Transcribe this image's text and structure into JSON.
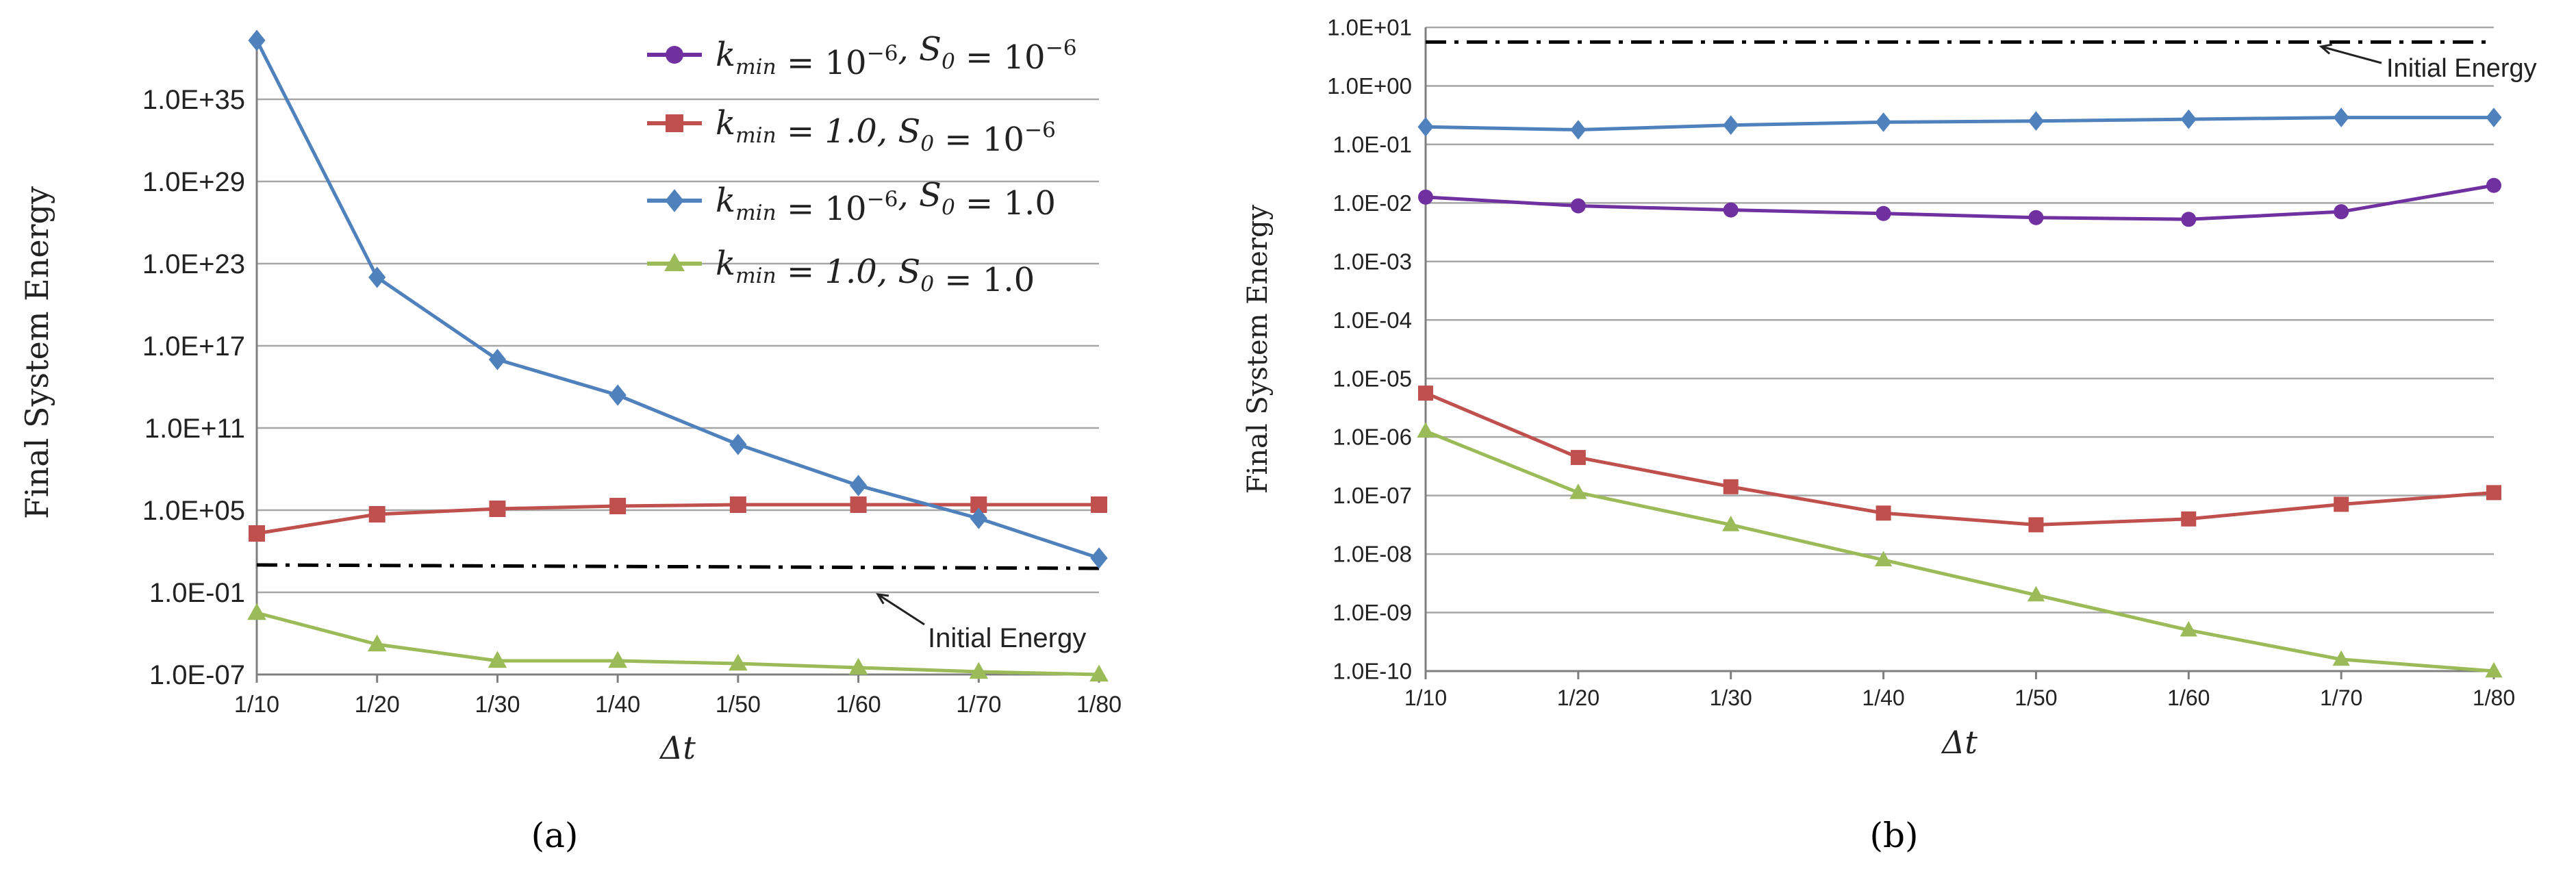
{
  "figure": {
    "panels": [
      "(a)",
      "(b)"
    ]
  },
  "chart_data": [
    {
      "type": "line",
      "panel": "(a)",
      "title": "",
      "xlabel": "Δt",
      "ylabel": "Final System Energy",
      "yscale": "log",
      "categories": [
        "1/10",
        "1/20",
        "1/30",
        "1/40",
        "1/50",
        "1/60",
        "1/70",
        "1/80"
      ],
      "ylim_log10": [
        -7,
        40
      ],
      "ytick_log10": [
        -7,
        -1,
        5,
        11,
        17,
        23,
        29,
        35
      ],
      "yticks": [
        "1.0E-07",
        "1.0E-01",
        "1.0E+05",
        "1.0E+11",
        "1.0E+17",
        "1.0E+23",
        "1.0E+29",
        "1.0E+35"
      ],
      "grid": true,
      "legend": "top-right",
      "series": [
        {
          "name": "k_min = 10^-6, S_0 = 10^-6",
          "legend_main": [
            "k",
            " = 10",
            ",  S",
            " = 10"
          ],
          "legend_sub": [
            "min",
            "",
            "0",
            ""
          ],
          "legend_sup": [
            "",
            "−6",
            "",
            "−6"
          ],
          "color": "#7030a0",
          "marker": "circle",
          "values_log10": [
            null,
            null,
            null,
            null,
            null,
            null,
            null,
            null
          ]
        },
        {
          "name": "k_min = 1.0, S_0 = 10^-6",
          "legend_main": [
            "k",
            " = 1.0,  S",
            " = 10"
          ],
          "legend_sub": [
            "min",
            "0",
            ""
          ],
          "legend_sup": [
            "",
            "",
            "−6"
          ],
          "color": "#c0504d",
          "marker": "square",
          "values_log10": [
            3.3,
            4.7,
            5.1,
            5.3,
            5.4,
            5.4,
            5.4,
            5.4
          ]
        },
        {
          "name": "k_min = 10^-6, S_0 = 1.0",
          "legend_main": [
            "k",
            " = 10",
            ",  S",
            " = 1.0"
          ],
          "legend_sub": [
            "min",
            "",
            "0",
            ""
          ],
          "legend_sup": [
            "",
            "−6",
            "",
            ""
          ],
          "color": "#4f81bd",
          "marker": "diamond",
          "values_log10": [
            39.3,
            22.0,
            16.0,
            13.4,
            9.8,
            6.8,
            4.4,
            1.5
          ]
        },
        {
          "name": "k_min = 1.0, S_0 = 1.0",
          "legend_main": [
            "k",
            " = 1.0,  S",
            " = 1.0"
          ],
          "legend_sub": [
            "min",
            "0",
            ""
          ],
          "legend_sup": [
            "",
            "",
            ""
          ],
          "color": "#9bbb59",
          "marker": "triangle",
          "values_log10": [
            -2.5,
            -4.8,
            -6.0,
            -6.0,
            -6.2,
            -6.5,
            -6.8,
            -7.0
          ]
        }
      ],
      "reference_line": {
        "name": "Initial Energy",
        "color": "#000000",
        "style": "dash-dot",
        "values_log10": [
          1.0,
          0.75
        ]
      },
      "annotation": "Initial Energy"
    },
    {
      "type": "line",
      "panel": "(b)",
      "title": "",
      "xlabel": "Δt",
      "ylabel": "Final System Energy",
      "yscale": "log",
      "categories": [
        "1/10",
        "1/20",
        "1/30",
        "1/40",
        "1/50",
        "1/60",
        "1/70",
        "1/80"
      ],
      "ylim_log10": [
        -10,
        1
      ],
      "ytick_log10": [
        -10,
        -9,
        -8,
        -7,
        -6,
        -5,
        -4,
        -3,
        -2,
        -1,
        0,
        1
      ],
      "yticks": [
        "1.0E-10",
        "1.0E-09",
        "1.0E-08",
        "1.0E-07",
        "1.0E-06",
        "1.0E-05",
        "1.0E-04",
        "1.0E-03",
        "1.0E-02",
        "1.0E-01",
        "1.0E+00",
        "1.0E+01"
      ],
      "grid": true,
      "series": [
        {
          "name": "k_min = 10^-6, S_0 = 10^-6",
          "color": "#7030a0",
          "marker": "circle",
          "values_log10": [
            -1.9,
            -2.05,
            -2.12,
            -2.18,
            -2.25,
            -2.28,
            -2.15,
            -1.7
          ]
        },
        {
          "name": "k_min = 1.0, S_0 = 10^-6",
          "color": "#c0504d",
          "marker": "square",
          "values_log10": [
            -5.25,
            -6.35,
            -6.85,
            -7.3,
            -7.5,
            -7.4,
            -7.15,
            -6.95
          ]
        },
        {
          "name": "k_min = 10^-6, S_0 = 1.0",
          "color": "#4f81bd",
          "marker": "diamond",
          "values_log10": [
            -0.7,
            -0.75,
            -0.67,
            -0.62,
            -0.6,
            -0.57,
            -0.54,
            -0.54
          ]
        },
        {
          "name": "k_min = 1.0, S_0 = 1.0",
          "color": "#9bbb59",
          "marker": "triangle",
          "values_log10": [
            -5.9,
            -6.95,
            -7.5,
            -8.1,
            -8.7,
            -9.3,
            -9.8,
            -10.0
          ]
        }
      ],
      "reference_line": {
        "name": "Initial Energy",
        "color": "#000000",
        "style": "dash-dot",
        "values_log10": [
          0.75,
          0.75
        ]
      },
      "annotation": "Initial Energy"
    }
  ]
}
